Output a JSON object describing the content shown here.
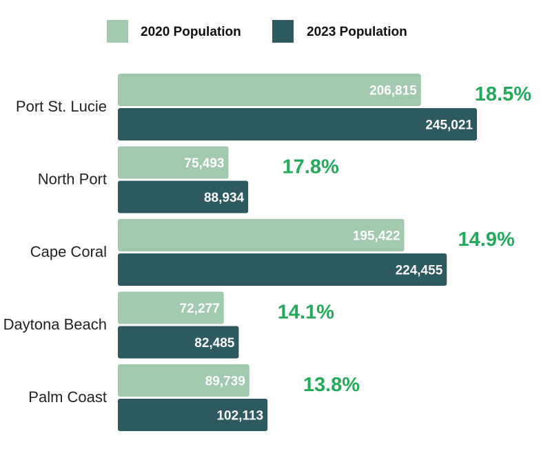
{
  "chart_data": {
    "type": "bar",
    "orientation": "horizontal",
    "categories": [
      "Port St. Lucie",
      "North Port",
      "Cape Coral",
      "Daytona Beach",
      "Palm Coast"
    ],
    "series": [
      {
        "name": "2020 Population",
        "color": "#a0c9ad",
        "values": [
          206815,
          75493,
          195422,
          72277,
          89739
        ],
        "labels": [
          "206,815",
          "75,493",
          "195,422",
          "72,277",
          "89,739"
        ]
      },
      {
        "name": "2023 Population",
        "color": "#2d5961",
        "values": [
          245021,
          88934,
          224455,
          82485,
          102113
        ],
        "labels": [
          "245,021",
          "88,934",
          "224,455",
          "82,485",
          "102,113"
        ]
      }
    ],
    "growth": [
      "18.5%",
      "17.8%",
      "14.9%",
      "14.1%",
      "13.8%"
    ],
    "growth_color": "#22a95a",
    "legend_position": "top",
    "xlim": [
      0,
      245021
    ],
    "grid": false,
    "title": "",
    "xlabel": "",
    "ylabel": ""
  }
}
